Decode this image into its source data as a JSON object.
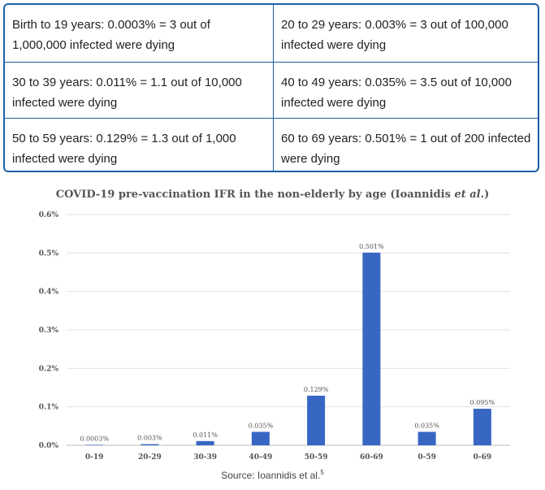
{
  "table": {
    "rows": [
      [
        {
          "text": "Birth to 19 years: 0.0003% = 3 out of 1,000,000 infected were dying"
        },
        {
          "text": "20 to 29 years: 0.003% = 3 out of 100,000 infected were dying"
        }
      ],
      [
        {
          "text": "30 to 39 years: 0.011% = 1.1 out of 10,000 infected were dying"
        },
        {
          "text": "40 to 49 years: 0.035% = 3.5 out of 10,000 infected were dying"
        }
      ],
      [
        {
          "text": "50 to 59 years: 0.129% = 1.3 out of 1,000 infected were dying"
        },
        {
          "text": "60 to 69 years: 0.501% = 1 out of 200 infected were dying"
        }
      ]
    ]
  },
  "chart_data": {
    "type": "bar",
    "title_main": "COVID-19 pre-vaccination IFR in the non-elderly by age (Ioannidis ",
    "title_em": "et al.",
    "title_end": ")",
    "categories": [
      "0-19",
      "20-29",
      "30-39",
      "40-49",
      "50-59",
      "60-69",
      "0-59",
      "0-69"
    ],
    "values": [
      0.0003,
      0.003,
      0.011,
      0.035,
      0.129,
      0.501,
      0.035,
      0.095
    ],
    "data_labels": [
      "0.0003%",
      "0.003%",
      "0.011%",
      "0.035%",
      "0.129%",
      "0.501%",
      "0.035%",
      "0.095%"
    ],
    "yticks": [
      0,
      0.1,
      0.2,
      0.3,
      0.4,
      0.5,
      0.6
    ],
    "ytick_labels": [
      "0.0%",
      "0.1%",
      "0.2%",
      "0.3%",
      "0.4%",
      "0.5%",
      "0.6%"
    ],
    "ylim": [
      0,
      0.6
    ],
    "grid": true,
    "bar_color": "#3867c3",
    "grid_color": "#e3e3e3",
    "xlabel": "",
    "ylabel": ""
  },
  "source": {
    "text": "Source: Ioannidis et al.",
    "ref": "5"
  }
}
